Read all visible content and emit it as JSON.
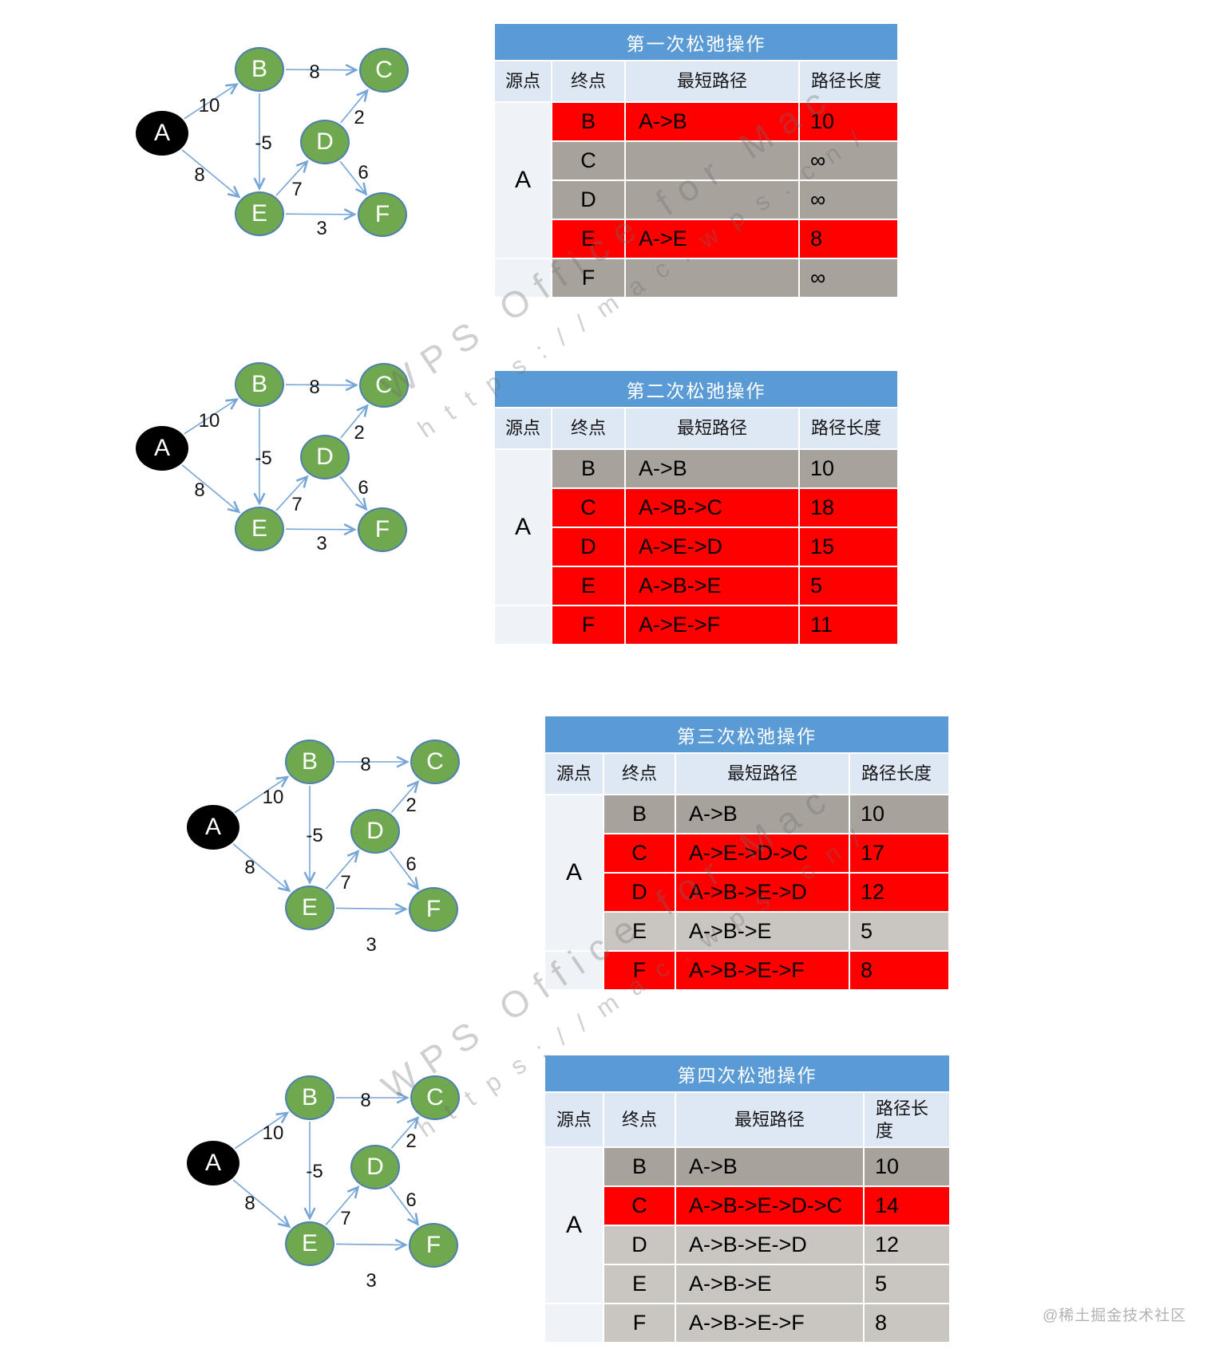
{
  "watermark": {
    "line1": "WPS Office for Mac",
    "line2": "https://mac.wps.cn/"
  },
  "credit": "@稀土掘金技术社区",
  "colors": {
    "title_bar": "#5B9BD5",
    "header_row": "#DEE8F4",
    "source_col": "#EFF2F7",
    "changed_red": "#FE0000",
    "kept_dark_gray": "#A7A29C",
    "kept_light_gray": "#C9C5C1",
    "node_green": "#6FA84F",
    "node_border": "#4E7FAE",
    "node_black": "#000000",
    "edge_blue": "#76A5D8",
    "credit_gray": "#B3B3B3"
  },
  "graph": {
    "nodes": [
      {
        "id": "A"
      },
      {
        "id": "B"
      },
      {
        "id": "C"
      },
      {
        "id": "D"
      },
      {
        "id": "E"
      },
      {
        "id": "F"
      }
    ],
    "edges": [
      {
        "from": "A",
        "to": "B",
        "weight": "10"
      },
      {
        "from": "A",
        "to": "E",
        "weight": "8"
      },
      {
        "from": "B",
        "to": "C",
        "weight": "8"
      },
      {
        "from": "B",
        "to": "E",
        "weight": "-5"
      },
      {
        "from": "E",
        "to": "D",
        "weight": "7"
      },
      {
        "from": "D",
        "to": "C",
        "weight": "2"
      },
      {
        "from": "D",
        "to": "F",
        "weight": "6"
      },
      {
        "from": "E",
        "to": "F",
        "weight": "3"
      }
    ]
  },
  "tables": [
    {
      "title": "第一次松弛操作",
      "headers": [
        "源点",
        "终点",
        "最短路径",
        "路径长度"
      ],
      "source": "A",
      "rows": [
        {
          "dest": "B",
          "path": "A->B",
          "len": "10",
          "state": "new"
        },
        {
          "dest": "C",
          "path": "",
          "len": "∞",
          "state": "dark"
        },
        {
          "dest": "D",
          "path": "",
          "len": "∞",
          "state": "dark"
        },
        {
          "dest": "E",
          "path": "A->E",
          "len": "8",
          "state": "new"
        },
        {
          "dest": "F",
          "path": "",
          "len": "∞",
          "state": "dark"
        }
      ]
    },
    {
      "title": "第二次松弛操作",
      "headers": [
        "源点",
        "终点",
        "最短路径",
        "路径长度"
      ],
      "source": "A",
      "rows": [
        {
          "dest": "B",
          "path": "A->B",
          "len": "10",
          "state": "dark"
        },
        {
          "dest": "C",
          "path": "A->B->C",
          "len": "18",
          "state": "new"
        },
        {
          "dest": "D",
          "path": "A->E->D",
          "len": "15",
          "state": "new"
        },
        {
          "dest": "E",
          "path": "A->B->E",
          "len": "5",
          "state": "new"
        },
        {
          "dest": "F",
          "path": "A->E->F",
          "len": "11",
          "state": "new"
        }
      ]
    },
    {
      "title": "第三次松弛操作",
      "headers": [
        "源点",
        "终点",
        "最短路径",
        "路径长度"
      ],
      "source": "A",
      "rows": [
        {
          "dest": "B",
          "path": "A->B",
          "len": "10",
          "state": "dark"
        },
        {
          "dest": "C",
          "path": "A->E->D->C",
          "len": "17",
          "state": "new"
        },
        {
          "dest": "D",
          "path": "A->B->E->D",
          "len": "12",
          "state": "new"
        },
        {
          "dest": "E",
          "path": "A->B->E",
          "len": "5",
          "state": "light"
        },
        {
          "dest": "F",
          "path": "A->B->E->F",
          "len": "8",
          "state": "new"
        }
      ]
    },
    {
      "title": "第四次松弛操作",
      "headers": [
        "源点",
        "终点",
        "最短路径",
        "路径长度"
      ],
      "source": "A",
      "rows": [
        {
          "dest": "B",
          "path": "A->B",
          "len": "10",
          "state": "dark"
        },
        {
          "dest": "C",
          "path": "A->B->E->D->C",
          "len": "14",
          "state": "new"
        },
        {
          "dest": "D",
          "path": "A->B->E->D",
          "len": "12",
          "state": "light"
        },
        {
          "dest": "E",
          "path": "A->B->E",
          "len": "5",
          "state": "light"
        },
        {
          "dest": "F",
          "path": "A->B->E->F",
          "len": "8",
          "state": "light"
        }
      ]
    }
  ]
}
